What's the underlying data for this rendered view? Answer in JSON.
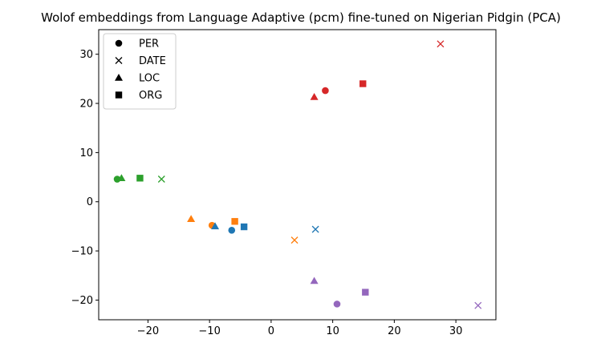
{
  "chart_data": {
    "type": "scatter",
    "title": "Wolof embeddings from Language Adaptive (pcm) fine-tuned on Nigerian Pidgin (PCA)",
    "xlabel": "",
    "ylabel": "",
    "xlim": [
      -28,
      36.5
    ],
    "ylim": [
      -24,
      35
    ],
    "xticks": [
      -20,
      -10,
      0,
      10,
      20,
      30
    ],
    "yticks": [
      -20,
      -10,
      0,
      10,
      20,
      30
    ],
    "grid": false,
    "legend_position": "top-left",
    "legend": [
      {
        "label": "PER",
        "marker": "circle"
      },
      {
        "label": "DATE",
        "marker": "x"
      },
      {
        "label": "LOC",
        "marker": "triangle"
      },
      {
        "label": "ORG",
        "marker": "square"
      }
    ],
    "points": [
      {
        "x": 8.8,
        "y": 22.6,
        "marker": "circle",
        "color": "#d62728"
      },
      {
        "x": 27.5,
        "y": 32.1,
        "marker": "x",
        "color": "#d62728"
      },
      {
        "x": 7.0,
        "y": 21.3,
        "marker": "triangle",
        "color": "#d62728"
      },
      {
        "x": 14.9,
        "y": 24.0,
        "marker": "square",
        "color": "#d62728"
      },
      {
        "x": -25.0,
        "y": 4.6,
        "marker": "circle",
        "color": "#2ca02c"
      },
      {
        "x": -17.8,
        "y": 4.6,
        "marker": "x",
        "color": "#2ca02c"
      },
      {
        "x": -24.3,
        "y": 4.8,
        "marker": "triangle",
        "color": "#2ca02c"
      },
      {
        "x": -21.3,
        "y": 4.8,
        "marker": "square",
        "color": "#2ca02c"
      },
      {
        "x": -9.6,
        "y": -4.8,
        "marker": "circle",
        "color": "#ff7f0e"
      },
      {
        "x": 3.8,
        "y": -7.8,
        "marker": "x",
        "color": "#ff7f0e"
      },
      {
        "x": -13.0,
        "y": -3.5,
        "marker": "triangle",
        "color": "#ff7f0e"
      },
      {
        "x": -5.9,
        "y": -4.0,
        "marker": "square",
        "color": "#ff7f0e"
      },
      {
        "x": -6.4,
        "y": -5.8,
        "marker": "circle",
        "color": "#1f77b4"
      },
      {
        "x": 7.2,
        "y": -5.6,
        "marker": "x",
        "color": "#1f77b4"
      },
      {
        "x": -9.1,
        "y": -5.0,
        "marker": "triangle",
        "color": "#1f77b4"
      },
      {
        "x": -4.4,
        "y": -5.1,
        "marker": "square",
        "color": "#1f77b4"
      },
      {
        "x": 10.7,
        "y": -20.8,
        "marker": "circle",
        "color": "#9467bd"
      },
      {
        "x": 33.6,
        "y": -21.1,
        "marker": "x",
        "color": "#9467bd"
      },
      {
        "x": 7.0,
        "y": -16.1,
        "marker": "triangle",
        "color": "#9467bd"
      },
      {
        "x": 15.3,
        "y": -18.4,
        "marker": "square",
        "color": "#9467bd"
      }
    ]
  }
}
